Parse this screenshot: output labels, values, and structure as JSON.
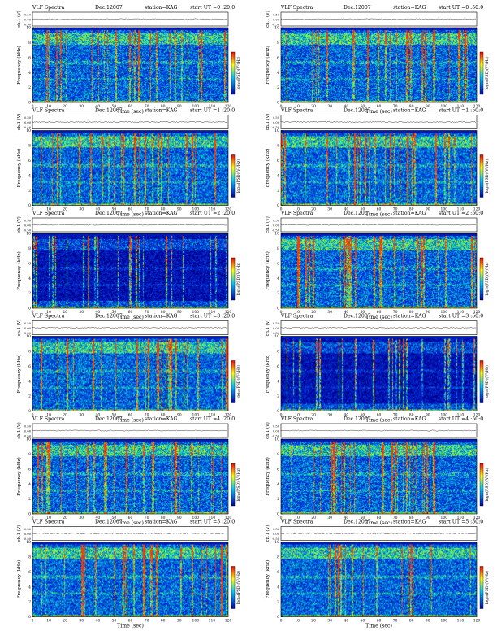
{
  "header_label": "VLF Spectra",
  "date": "Dec.12007",
  "station": "station=KAG",
  "time_axis_label": "Time (sec)",
  "ch_label": "ch.1 (V)",
  "freq_label": "Frequency (kHz)",
  "cbar_label": "log₁₀(PSD)(V²/Hz)",
  "colors": {
    "low": "#0000b4",
    "mid": "#00c8ff",
    "high": "#ffff00",
    "max": "#ff0000"
  },
  "chart_data": [
    {
      "type": "heatmap",
      "start_ut": "start UT =0 :20:0",
      "xlim": [
        0,
        120
      ],
      "ylim": [
        0,
        10
      ],
      "xticks": [
        0,
        10,
        20,
        30,
        40,
        50,
        60,
        70,
        80,
        90,
        100,
        110,
        120
      ],
      "yticks": [
        0,
        2,
        4,
        6,
        8,
        10
      ],
      "ch1_ticks": [
        "0.50",
        "0.00",
        "-0.50"
      ]
    },
    {
      "type": "heatmap",
      "start_ut": "start UT =0 :50:0",
      "xlim": [
        0,
        120
      ],
      "ylim": [
        0,
        10
      ],
      "xticks": [
        0,
        10,
        20,
        30,
        40,
        50,
        60,
        70,
        80,
        90,
        100,
        110,
        120
      ],
      "yticks": [
        0,
        2,
        4,
        6,
        8,
        10
      ],
      "ch1_ticks": [
        "0.50",
        "0.00",
        "-0.50"
      ]
    },
    {
      "type": "heatmap",
      "start_ut": "start UT =1 :20:0",
      "xlim": [
        0,
        120
      ],
      "ylim": [
        0,
        10
      ],
      "xticks": [
        0,
        10,
        20,
        30,
        40,
        50,
        60,
        70,
        80,
        90,
        100,
        110,
        120
      ],
      "yticks": [
        0,
        2,
        4,
        6,
        8,
        10
      ],
      "ch1_ticks": [
        "0.50",
        "0.00",
        "-0.50"
      ]
    },
    {
      "type": "heatmap",
      "start_ut": "start UT =1 :50:0",
      "xlim": [
        0,
        120
      ],
      "ylim": [
        0,
        10
      ],
      "xticks": [
        0,
        10,
        20,
        30,
        40,
        50,
        60,
        70,
        80,
        90,
        100,
        110,
        120
      ],
      "yticks": [
        0,
        2,
        4,
        6,
        8,
        10
      ],
      "ch1_ticks": [
        "0.50",
        "0.00",
        "-0.50"
      ]
    },
    {
      "type": "heatmap",
      "start_ut": "start UT =2 :20:0",
      "xlim": [
        0,
        120
      ],
      "ylim": [
        0,
        10
      ],
      "xticks": [
        0,
        10,
        20,
        30,
        40,
        50,
        60,
        70,
        80,
        90,
        100,
        110,
        120
      ],
      "yticks": [
        0,
        2,
        4,
        6,
        8,
        10
      ],
      "ch1_ticks": [
        "0.50",
        "0.00",
        "-0.50"
      ]
    },
    {
      "type": "heatmap",
      "start_ut": "start UT =2 :50:0",
      "xlim": [
        0,
        120
      ],
      "ylim": [
        0,
        10
      ],
      "xticks": [
        0,
        10,
        20,
        30,
        40,
        50,
        60,
        70,
        80,
        90,
        100,
        110,
        120
      ],
      "yticks": [
        0,
        2,
        4,
        6,
        8,
        10
      ],
      "ch1_ticks": [
        "0.50",
        "0.00",
        "-0.50"
      ]
    },
    {
      "type": "heatmap",
      "start_ut": "start UT =3 :20:0",
      "xlim": [
        0,
        120
      ],
      "ylim": [
        0,
        10
      ],
      "xticks": [
        0,
        10,
        20,
        30,
        40,
        50,
        60,
        70,
        80,
        90,
        100,
        110,
        120
      ],
      "yticks": [
        0,
        2,
        4,
        6,
        8,
        10
      ],
      "ch1_ticks": [
        "0.50",
        "0.00",
        "-0.50"
      ]
    },
    {
      "type": "heatmap",
      "start_ut": "start UT =3 :50:0",
      "xlim": [
        0,
        120
      ],
      "ylim": [
        0,
        10
      ],
      "xticks": [
        0,
        10,
        20,
        30,
        40,
        50,
        60,
        70,
        80,
        90,
        100,
        110,
        120
      ],
      "yticks": [
        0,
        2,
        4,
        6,
        8,
        10
      ],
      "ch1_ticks": [
        "0.50",
        "0.00",
        "-0.50"
      ]
    },
    {
      "type": "heatmap",
      "start_ut": "start UT =4 :20:0",
      "xlim": [
        0,
        120
      ],
      "ylim": [
        0,
        10
      ],
      "xticks": [
        0,
        10,
        20,
        30,
        40,
        50,
        60,
        70,
        80,
        90,
        100,
        110,
        120
      ],
      "yticks": [
        0,
        2,
        4,
        6,
        8,
        10
      ],
      "ch1_ticks": [
        "0.50",
        "0.00",
        "-0.50"
      ]
    },
    {
      "type": "heatmap",
      "start_ut": "start UT =4 :50:0",
      "xlim": [
        0,
        120
      ],
      "ylim": [
        0,
        10
      ],
      "xticks": [
        0,
        10,
        20,
        30,
        40,
        50,
        60,
        70,
        80,
        90,
        100,
        110,
        120
      ],
      "yticks": [
        0,
        2,
        4,
        6,
        8,
        10
      ],
      "ch1_ticks": [
        "0.50",
        "0.00",
        "-0.50"
      ]
    },
    {
      "type": "heatmap",
      "start_ut": "start UT =5 :20:0",
      "xlim": [
        0,
        120
      ],
      "ylim": [
        0,
        10
      ],
      "xticks": [
        0,
        10,
        20,
        30,
        40,
        50,
        60,
        70,
        80,
        90,
        100,
        110,
        120
      ],
      "yticks": [
        0,
        2,
        4,
        6,
        8,
        10
      ],
      "ch1_ticks": [
        "0.50",
        "0.00",
        "-0.50"
      ]
    },
    {
      "type": "heatmap",
      "start_ut": "start UT =5 :50:0",
      "xlim": [
        0,
        120
      ],
      "ylim": [
        0,
        10
      ],
      "xticks": [
        0,
        10,
        20,
        30,
        40,
        50,
        60,
        70,
        80,
        90,
        100,
        110,
        120
      ],
      "yticks": [
        0,
        2,
        4,
        6,
        8,
        10
      ],
      "ch1_ticks": [
        "0.50",
        "0.00",
        "-0.50"
      ]
    }
  ]
}
